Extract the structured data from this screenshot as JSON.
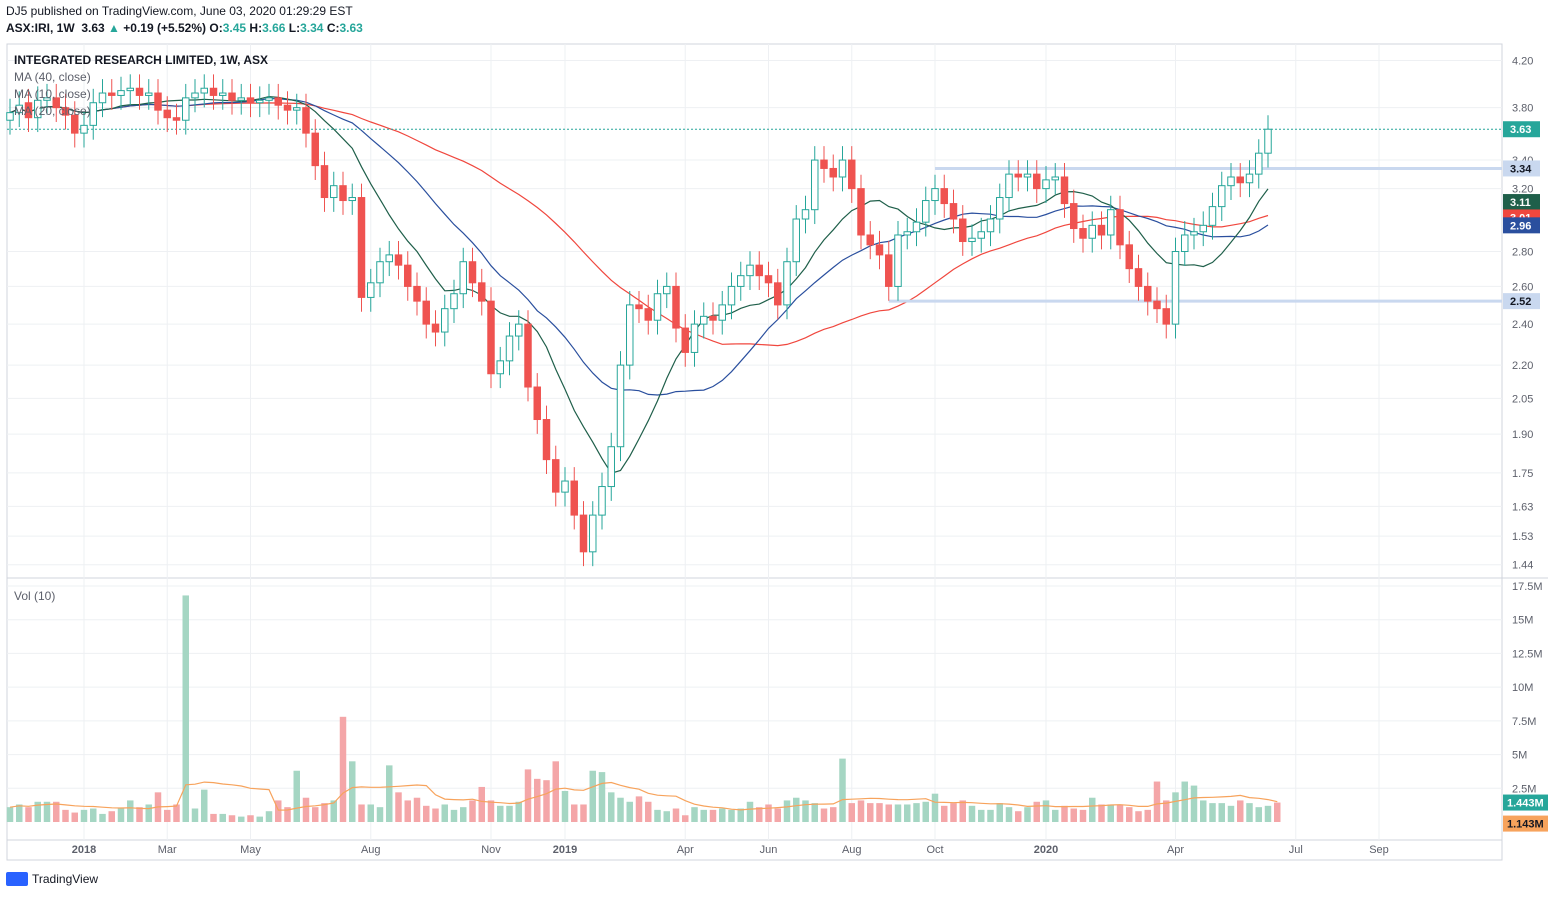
{
  "header": {
    "published": "DJ5 published on TradingView.com, June 03, 2020 01:29:29 EST",
    "symbol": "ASX:IRI, 1W",
    "price": "3.63",
    "change": "+0.19 (+5.52%)",
    "open_label": "O:",
    "open": "3.45",
    "high_label": "H:",
    "high": "3.66",
    "low_label": "L:",
    "low": "3.34",
    "close_label": "C:",
    "close": "3.63"
  },
  "legend": {
    "title": "INTEGRATED RESEARCH LIMITED, 1W, ASX",
    "ma_items": [
      "MA (40, close)",
      "MA (10, close)",
      "MA (20, close)"
    ],
    "volume": "Vol (10)"
  },
  "watermark": "TradingView",
  "colors": {
    "up": "#26a69a",
    "down": "#ef5350",
    "vol_up": "#a5d6c3",
    "vol_down": "#f4a6a8",
    "ma40": "#f0473e",
    "ma10": "#1f5f4a",
    "ma20": "#2a4f9e",
    "vol_ma": "#f7a35c",
    "grid": "#eef0f3"
  },
  "chart_data": {
    "type": "candlestick",
    "interval": "1W",
    "price_axis": {
      "ticks": [
        "4.20",
        "3.80",
        "3.40",
        "3.20",
        "2.80",
        "2.60",
        "2.40",
        "2.20",
        "2.05",
        "1.90",
        "1.75",
        "1.63",
        "1.53",
        "1.44"
      ],
      "range": [
        1.4,
        4.35
      ],
      "scale": "log"
    },
    "volume_axis": {
      "ticks": [
        "17.5M",
        "15M",
        "12.5M",
        "10M",
        "7.5M",
        "5M",
        "2.5M"
      ],
      "range": [
        0,
        17.5
      ]
    },
    "x_axis": {
      "labels": [
        "2018",
        "Mar",
        "May",
        "Aug",
        "Nov",
        "2019",
        "Apr",
        "Jun",
        "Aug",
        "Oct",
        "2020",
        "Apr",
        "Jul",
        "Sep"
      ],
      "label_weeks": [
        8,
        17,
        26,
        39,
        52,
        60,
        73,
        82,
        91,
        100,
        112,
        126,
        139,
        148
      ]
    },
    "price_labels": [
      {
        "value": "3.63",
        "color": "#26a69a"
      },
      {
        "value": "3.34",
        "color": "#c9d8ef"
      },
      {
        "value": "3.11",
        "color": "#1f5f4a"
      },
      {
        "value": "3.01",
        "color": "#f0473e"
      },
      {
        "value": "2.96",
        "color": "#2a4f9e"
      },
      {
        "value": "2.52",
        "color": "#c9d8ef"
      }
    ],
    "volume_labels": [
      {
        "value": "1.443M",
        "color": "#26a69a"
      },
      {
        "value": "1.143M",
        "color": "#f7a35c"
      }
    ],
    "horizontal_levels": [
      {
        "value": 3.34,
        "from_week": 100
      },
      {
        "value": 2.52,
        "from_week": 95
      }
    ],
    "closes": [
      3.76,
      3.82,
      3.72,
      3.86,
      3.88,
      3.8,
      3.74,
      3.6,
      3.66,
      3.84,
      3.92,
      3.9,
      3.94,
      3.96,
      3.9,
      3.92,
      3.78,
      3.72,
      3.7,
      3.88,
      3.92,
      3.96,
      3.9,
      3.92,
      3.86,
      3.88,
      3.84,
      3.86,
      3.88,
      3.82,
      3.78,
      3.8,
      3.6,
      3.36,
      3.14,
      3.22,
      3.12,
      3.14,
      2.54,
      2.62,
      2.74,
      2.78,
      2.72,
      2.6,
      2.52,
      2.4,
      2.36,
      2.48,
      2.56,
      2.74,
      2.62,
      2.52,
      2.16,
      2.22,
      2.34,
      2.4,
      2.1,
      1.96,
      1.8,
      1.68,
      1.72,
      1.6,
      1.48,
      1.6,
      1.7,
      1.85,
      2.2,
      2.5,
      2.48,
      2.42,
      2.56,
      2.6,
      2.38,
      2.26,
      2.4,
      2.44,
      2.42,
      2.5,
      2.6,
      2.66,
      2.72,
      2.66,
      2.62,
      2.5,
      2.74,
      3.0,
      3.06,
      3.4,
      3.34,
      3.28,
      3.4,
      3.2,
      2.9,
      2.84,
      2.78,
      2.6,
      2.9,
      2.92,
      2.98,
      3.12,
      3.2,
      3.1,
      3.0,
      2.86,
      2.88,
      2.92,
      3.0,
      3.14,
      3.3,
      3.28,
      3.3,
      3.2,
      3.26,
      3.28,
      3.1,
      2.94,
      2.88,
      2.96,
      2.9,
      3.06,
      2.84,
      2.7,
      2.6,
      2.52,
      2.48,
      2.4,
      2.8,
      2.9,
      2.92,
      2.96,
      3.08,
      3.22,
      3.28,
      3.24,
      3.3,
      3.45,
      3.63
    ],
    "opens": [
      3.7,
      3.76,
      3.84,
      3.72,
      3.86,
      3.88,
      3.8,
      3.74,
      3.6,
      3.66,
      3.84,
      3.92,
      3.9,
      3.94,
      3.96,
      3.9,
      3.92,
      3.78,
      3.72,
      3.7,
      3.88,
      3.92,
      3.96,
      3.9,
      3.92,
      3.86,
      3.88,
      3.84,
      3.86,
      3.88,
      3.82,
      3.78,
      3.8,
      3.6,
      3.36,
      3.14,
      3.22,
      3.12,
      3.14,
      2.54,
      2.62,
      2.74,
      2.78,
      2.72,
      2.6,
      2.52,
      2.4,
      2.36,
      2.48,
      2.56,
      2.74,
      2.62,
      2.52,
      2.16,
      2.22,
      2.34,
      2.4,
      2.1,
      1.96,
      1.8,
      1.68,
      1.72,
      1.6,
      1.48,
      1.6,
      1.7,
      1.85,
      2.2,
      2.5,
      2.48,
      2.42,
      2.56,
      2.6,
      2.38,
      2.26,
      2.4,
      2.44,
      2.42,
      2.5,
      2.6,
      2.66,
      2.72,
      2.66,
      2.62,
      2.5,
      2.74,
      3.0,
      3.06,
      3.4,
      3.34,
      3.28,
      3.4,
      3.2,
      2.9,
      2.84,
      2.78,
      2.6,
      2.9,
      2.92,
      2.98,
      3.12,
      3.2,
      3.1,
      3.0,
      2.86,
      2.88,
      2.92,
      3.0,
      3.14,
      3.3,
      3.28,
      3.3,
      3.2,
      3.26,
      3.28,
      3.1,
      2.94,
      2.88,
      2.96,
      2.9,
      3.06,
      2.84,
      2.7,
      2.6,
      2.52,
      2.48,
      2.4,
      2.8,
      2.9,
      2.92,
      2.96,
      3.08,
      3.22,
      3.28,
      3.24,
      3.3,
      3.45
    ],
    "highs_pad": 0.06,
    "lows_pad": 0.06,
    "volumes": [
      1.1,
      1.3,
      1.1,
      1.5,
      1.5,
      1.5,
      0.9,
      0.7,
      0.9,
      1.0,
      0.6,
      0.8,
      1.0,
      1.6,
      1.1,
      1.3,
      2.2,
      0.9,
      1.3,
      16.8,
      1.0,
      2.4,
      0.6,
      0.6,
      0.5,
      0.4,
      0.5,
      0.4,
      0.8,
      1.6,
      1.1,
      3.8,
      1.8,
      1.1,
      1.4,
      1.6,
      7.8,
      4.5,
      1.3,
      1.3,
      1.1,
      4.2,
      2.2,
      1.6,
      1.8,
      1.2,
      1.0,
      1.3,
      0.9,
      1.1,
      1.6,
      2.6,
      1.6,
      1.2,
      1.2,
      1.5,
      3.9,
      3.2,
      3.1,
      4.5,
      2.3,
      1.3,
      1.3,
      3.8,
      3.7,
      2.2,
      1.8,
      1.5,
      1.9,
      1.5,
      0.9,
      0.8,
      1.0,
      0.5,
      1.1,
      0.9,
      0.9,
      1.0,
      0.9,
      1.0,
      1.5,
      1.1,
      1.3,
      1.0,
      1.6,
      1.8,
      1.6,
      1.4,
      1.0,
      1.1,
      4.7,
      1.4,
      1.6,
      1.4,
      1.4,
      1.3,
      1.3,
      1.3,
      1.4,
      1.5,
      2.1,
      1.2,
      1.4,
      1.6,
      1.2,
      0.9,
      0.9,
      1.4,
      1.1,
      0.8,
      1.1,
      1.5,
      1.6,
      0.9,
      1.2,
      1.0,
      0.9,
      1.8,
      1.3,
      1.3,
      1.3,
      1.1,
      0.8,
      0.9,
      3.0,
      1.6,
      2.2,
      3.0,
      2.7,
      1.6,
      1.4,
      1.4,
      1.2,
      1.6,
      1.4,
      1.1,
      1.2,
      1.443
    ]
  }
}
